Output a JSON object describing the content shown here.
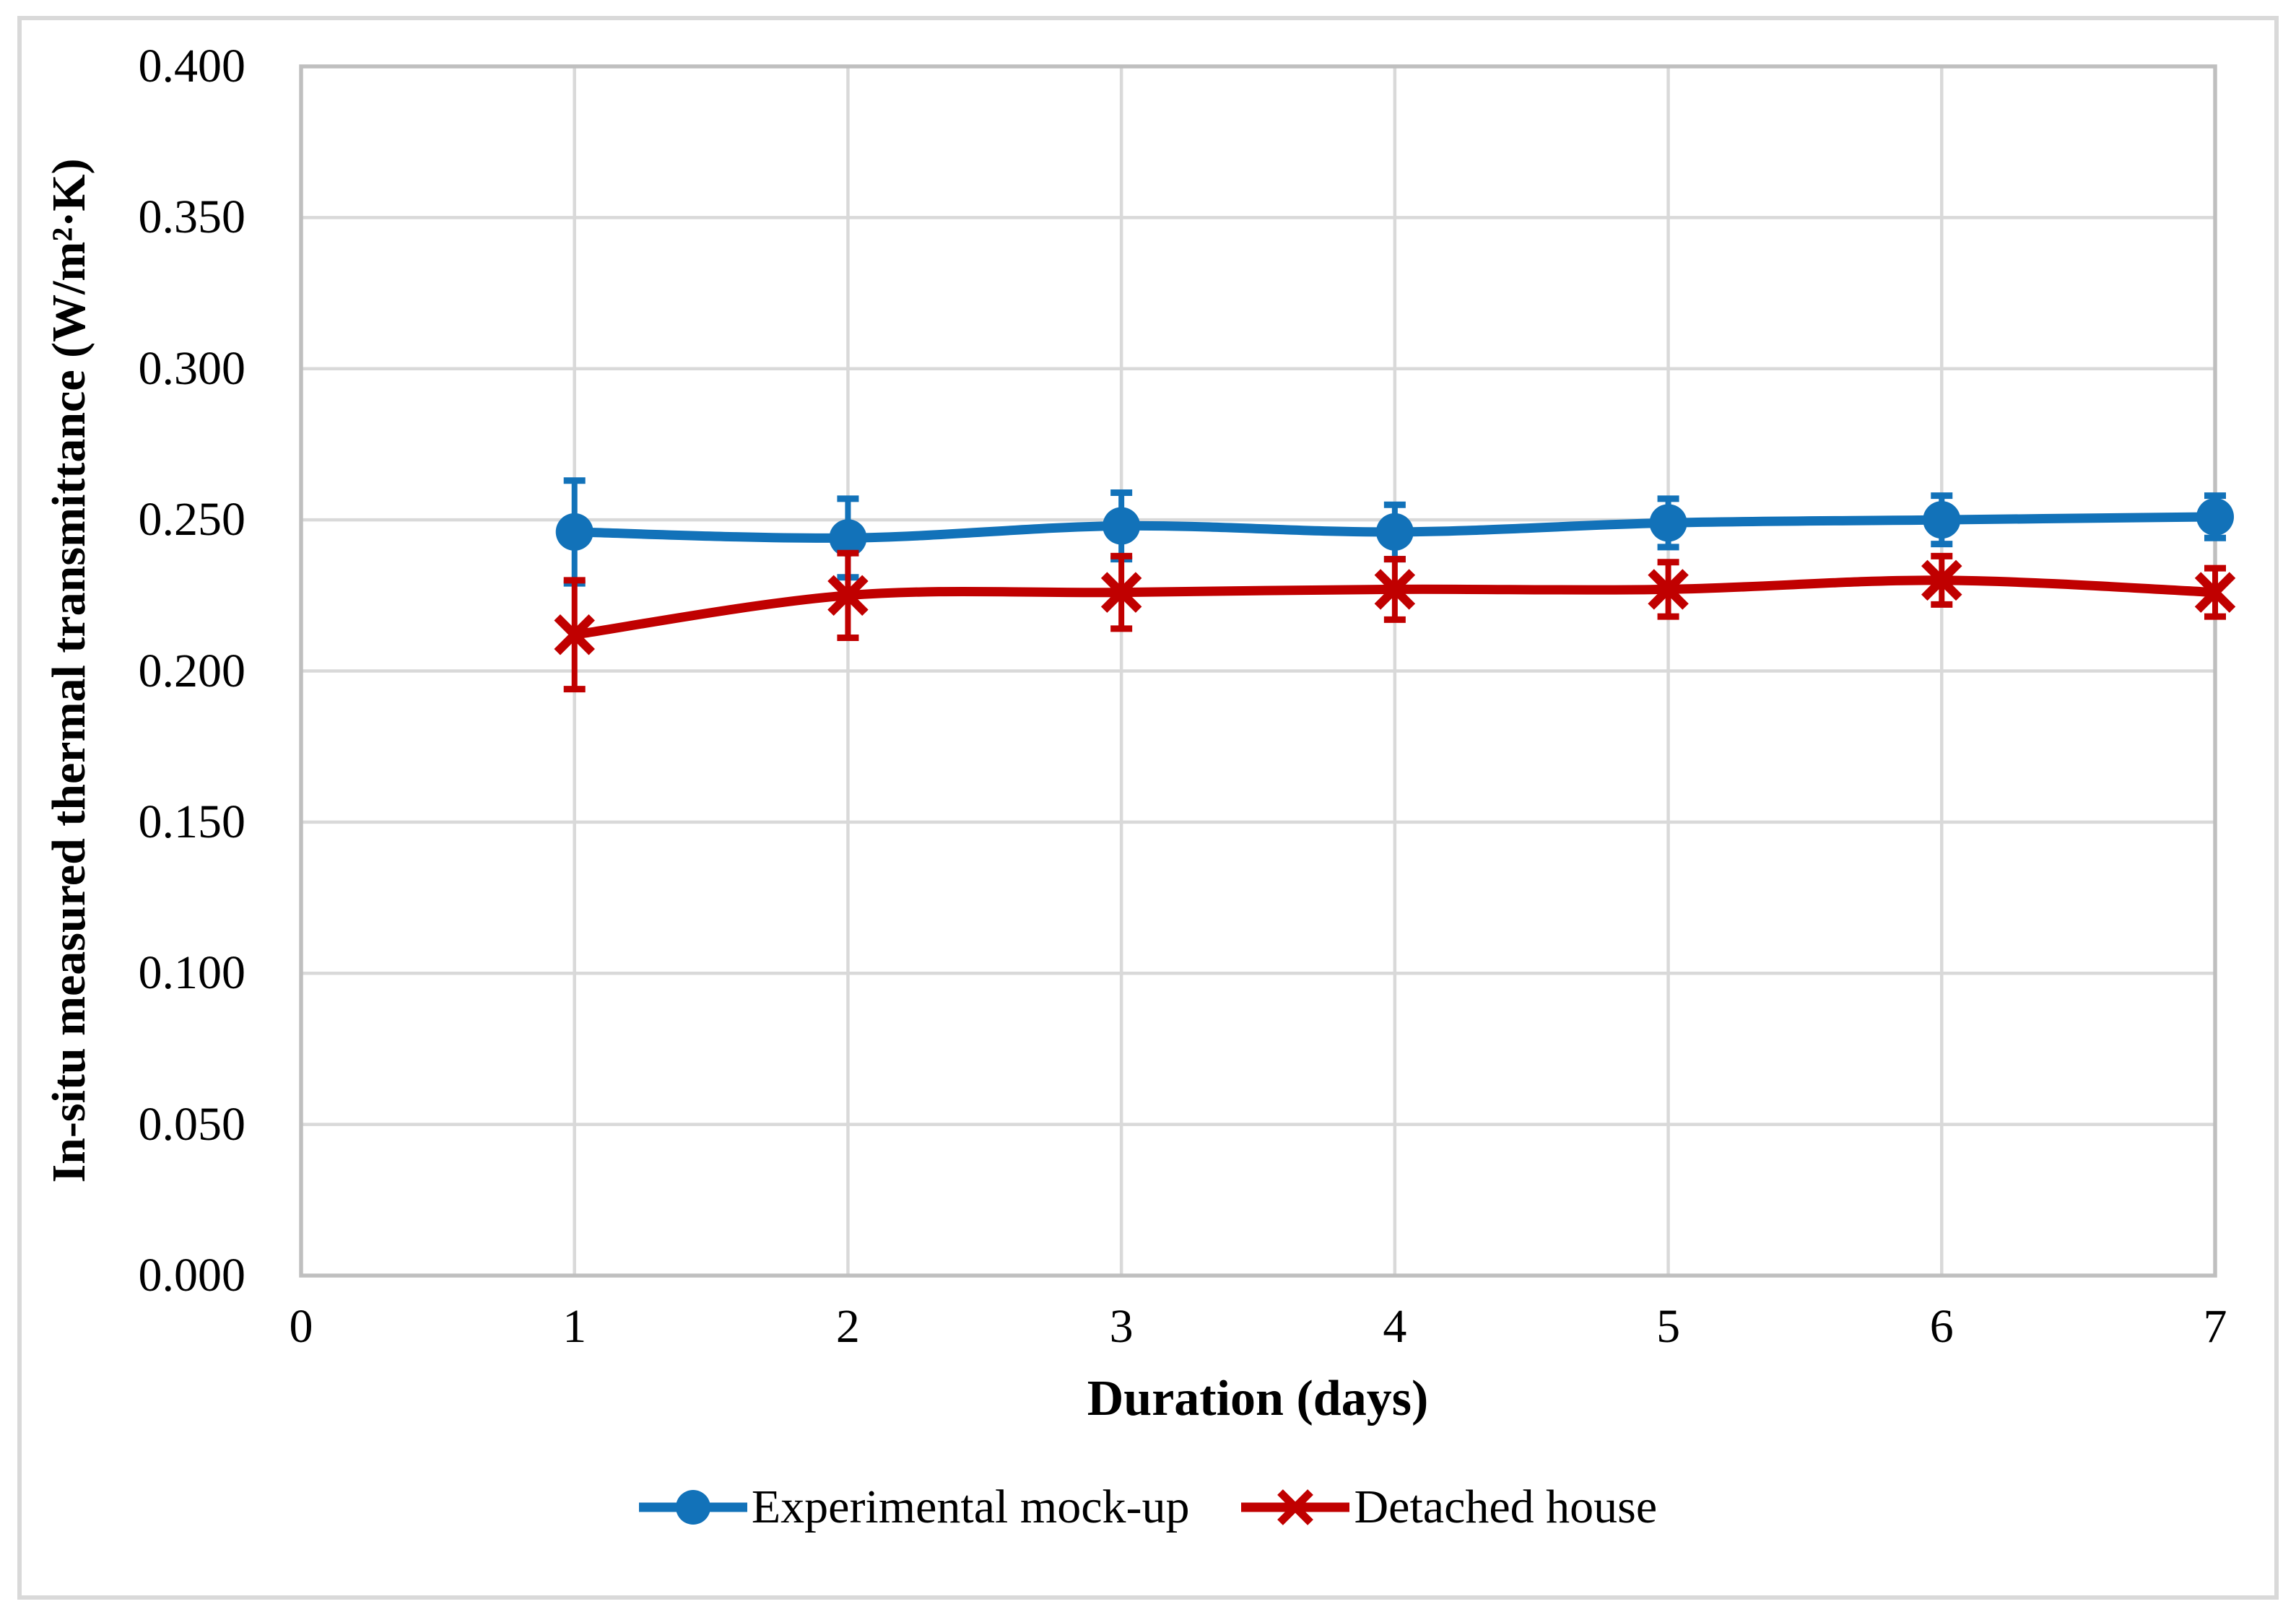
{
  "chart_data": {
    "type": "line",
    "title": "",
    "xlabel": "Duration (days)",
    "ylabel": "In-situ measured thermal transmittance (W/m²·K)",
    "x": [
      1,
      2,
      3,
      4,
      5,
      6,
      7
    ],
    "xlim": [
      0,
      7
    ],
    "ylim": [
      0.0,
      0.4
    ],
    "xticks": [
      {
        "value": 0,
        "label": "0"
      },
      {
        "value": 1,
        "label": "1"
      },
      {
        "value": 2,
        "label": "2"
      },
      {
        "value": 3,
        "label": "3"
      },
      {
        "value": 4,
        "label": "4"
      },
      {
        "value": 5,
        "label": "5"
      },
      {
        "value": 6,
        "label": "6"
      },
      {
        "value": 7,
        "label": "7"
      }
    ],
    "yticks": [
      {
        "value": 0.0,
        "label": "0.000"
      },
      {
        "value": 0.05,
        "label": "0.050"
      },
      {
        "value": 0.1,
        "label": "0.100"
      },
      {
        "value": 0.15,
        "label": "0.150"
      },
      {
        "value": 0.2,
        "label": "0.200"
      },
      {
        "value": 0.25,
        "label": "0.250"
      },
      {
        "value": 0.3,
        "label": "0.300"
      },
      {
        "value": 0.35,
        "label": "0.350"
      },
      {
        "value": 0.4,
        "label": "0.400"
      }
    ],
    "grid": true,
    "error_bars": true,
    "legend_position": "bottom-center",
    "series": [
      {
        "name": "Experimental mock-up",
        "marker": "circle",
        "color": "#1272B9",
        "values": [
          0.246,
          0.244,
          0.248,
          0.246,
          0.249,
          0.25,
          0.251
        ],
        "errors": [
          0.017,
          0.013,
          0.011,
          0.009,
          0.008,
          0.008,
          0.007
        ]
      },
      {
        "name": "Detached house",
        "marker": "x",
        "color": "#C00000",
        "values": [
          0.212,
          0.225,
          0.226,
          0.227,
          0.227,
          0.23,
          0.226
        ],
        "errors": [
          0.018,
          0.014,
          0.012,
          0.01,
          0.009,
          0.008,
          0.008
        ]
      }
    ]
  },
  "style": {
    "grid_color": "#D9D9D9",
    "frame_color": "#BFBFBF",
    "figure_border_color": "#D9D9D9",
    "text_color": "#000000",
    "background": "#FFFFFF"
  }
}
